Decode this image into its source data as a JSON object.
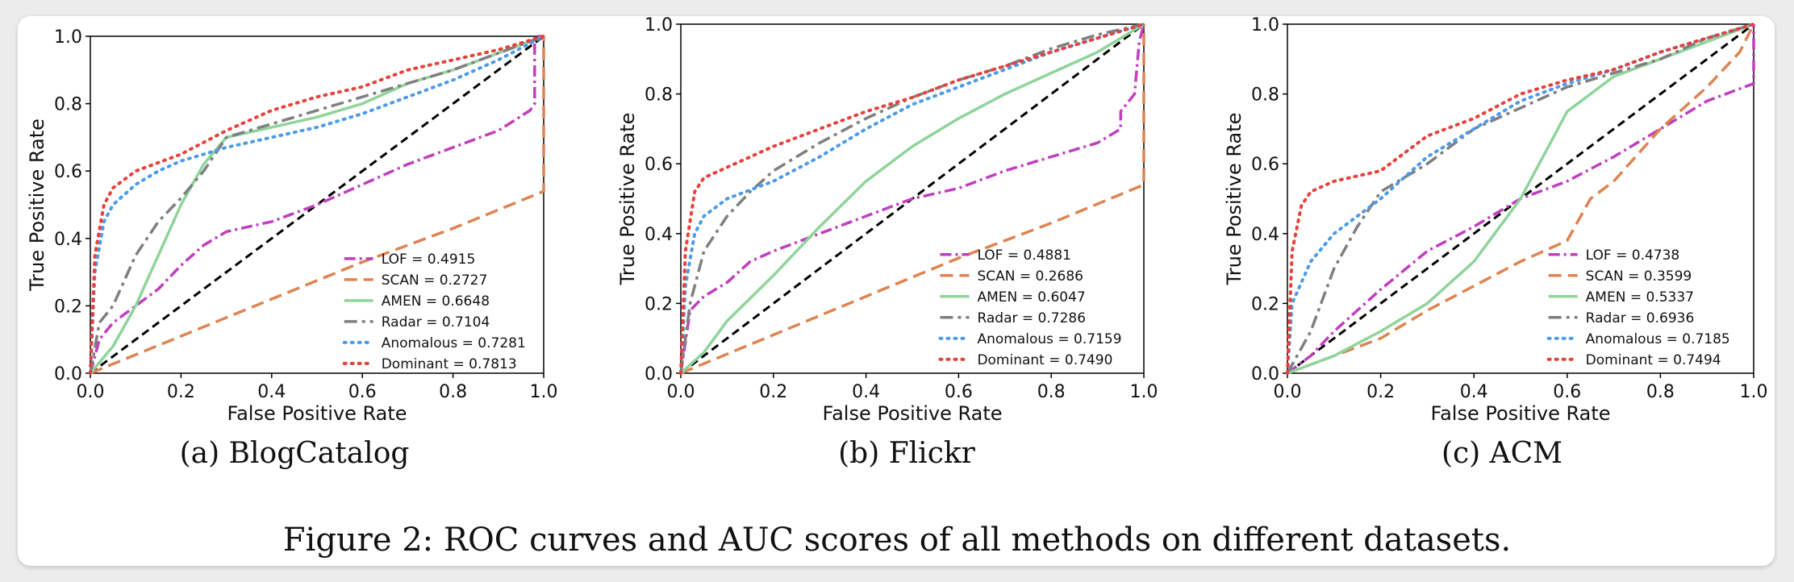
{
  "figure_caption": "Figure 2: ROC curves and AUC scores of all methods on different datasets.",
  "colors": {
    "LOF": "#bf3fbf",
    "SCAN": "#dd8452",
    "AMEN": "#8fd49a",
    "Radar": "#7f7f7f",
    "Anomalous": "#4c9be8",
    "Dominant": "#e8413c",
    "diagonal": "#000000"
  },
  "chart_data": [
    {
      "type": "line",
      "caption": "(a) BlogCatalog",
      "xlabel": "False Positive Rate",
      "ylabel": "True Positive Rate",
      "xlim": [
        0,
        1
      ],
      "ylim": [
        0,
        1
      ],
      "xticks": [
        "0.0",
        "0.2",
        "0.4",
        "0.6",
        "0.8",
        "1.0"
      ],
      "yticks": [
        "0.0",
        "0.2",
        "0.4",
        "0.6",
        "0.8",
        "1.0"
      ],
      "legend": "lower-right",
      "series": [
        {
          "name": "LOF = 0.4915",
          "key": "LOF",
          "points": [
            [
              0,
              0
            ],
            [
              0.02,
              0.1
            ],
            [
              0.05,
              0.15
            ],
            [
              0.1,
              0.2
            ],
            [
              0.15,
              0.25
            ],
            [
              0.2,
              0.32
            ],
            [
              0.25,
              0.38
            ],
            [
              0.3,
              0.42
            ],
            [
              0.4,
              0.45
            ],
            [
              0.5,
              0.5
            ],
            [
              0.6,
              0.56
            ],
            [
              0.7,
              0.62
            ],
            [
              0.8,
              0.67
            ],
            [
              0.9,
              0.72
            ],
            [
              0.97,
              0.78
            ],
            [
              0.98,
              0.8
            ],
            [
              0.98,
              1.0
            ],
            [
              1,
              1
            ]
          ]
        },
        {
          "name": "SCAN = 0.2727",
          "key": "SCAN",
          "points": [
            [
              0,
              0
            ],
            [
              0.2,
              0.11
            ],
            [
              0.4,
              0.22
            ],
            [
              0.6,
              0.33
            ],
            [
              0.8,
              0.43
            ],
            [
              1.0,
              0.54
            ],
            [
              1.0,
              1.0
            ]
          ]
        },
        {
          "name": "AMEN = 0.6648",
          "key": "AMEN",
          "points": [
            [
              0,
              0
            ],
            [
              0.05,
              0.08
            ],
            [
              0.1,
              0.2
            ],
            [
              0.15,
              0.35
            ],
            [
              0.2,
              0.5
            ],
            [
              0.25,
              0.62
            ],
            [
              0.3,
              0.7
            ],
            [
              0.4,
              0.73
            ],
            [
              0.5,
              0.76
            ],
            [
              0.6,
              0.8
            ],
            [
              0.7,
              0.86
            ],
            [
              0.8,
              0.9
            ],
            [
              0.9,
              0.95
            ],
            [
              1,
              1
            ]
          ]
        },
        {
          "name": "Radar = 0.7104",
          "key": "Radar",
          "points": [
            [
              0,
              0
            ],
            [
              0.02,
              0.15
            ],
            [
              0.05,
              0.2
            ],
            [
              0.1,
              0.35
            ],
            [
              0.15,
              0.45
            ],
            [
              0.2,
              0.52
            ],
            [
              0.25,
              0.6
            ],
            [
              0.3,
              0.7
            ],
            [
              0.4,
              0.74
            ],
            [
              0.5,
              0.78
            ],
            [
              0.6,
              0.82
            ],
            [
              0.7,
              0.86
            ],
            [
              0.8,
              0.9
            ],
            [
              0.9,
              0.95
            ],
            [
              1,
              1
            ]
          ]
        },
        {
          "name": "Anomalous = 0.7281",
          "key": "Anomalous",
          "points": [
            [
              0,
              0
            ],
            [
              0.01,
              0.3
            ],
            [
              0.03,
              0.45
            ],
            [
              0.05,
              0.5
            ],
            [
              0.1,
              0.56
            ],
            [
              0.15,
              0.6
            ],
            [
              0.2,
              0.63
            ],
            [
              0.3,
              0.67
            ],
            [
              0.4,
              0.7
            ],
            [
              0.5,
              0.73
            ],
            [
              0.6,
              0.77
            ],
            [
              0.7,
              0.82
            ],
            [
              0.8,
              0.87
            ],
            [
              0.9,
              0.93
            ],
            [
              1,
              1
            ]
          ]
        },
        {
          "name": "Dominant = 0.7813",
          "key": "Dominant",
          "points": [
            [
              0,
              0
            ],
            [
              0.01,
              0.35
            ],
            [
              0.03,
              0.5
            ],
            [
              0.05,
              0.55
            ],
            [
              0.1,
              0.6
            ],
            [
              0.2,
              0.65
            ],
            [
              0.3,
              0.72
            ],
            [
              0.4,
              0.78
            ],
            [
              0.5,
              0.82
            ],
            [
              0.6,
              0.85
            ],
            [
              0.7,
              0.9
            ],
            [
              0.8,
              0.93
            ],
            [
              0.9,
              0.96
            ],
            [
              1,
              1
            ]
          ]
        }
      ]
    },
    {
      "type": "line",
      "caption": "(b) Flickr",
      "xlabel": "False Positive Rate",
      "ylabel": "True Positive Rate",
      "xlim": [
        0,
        1
      ],
      "ylim": [
        0,
        1
      ],
      "xticks": [
        "0.0",
        "0.2",
        "0.4",
        "0.6",
        "0.8",
        "1.0"
      ],
      "yticks": [
        "0.0",
        "0.2",
        "0.4",
        "0.6",
        "0.8",
        "1.0"
      ],
      "legend": "lower-right",
      "series": [
        {
          "name": "LOF = 0.4881",
          "key": "LOF",
          "points": [
            [
              0,
              0
            ],
            [
              0.02,
              0.18
            ],
            [
              0.05,
              0.22
            ],
            [
              0.1,
              0.26
            ],
            [
              0.15,
              0.32
            ],
            [
              0.2,
              0.35
            ],
            [
              0.3,
              0.4
            ],
            [
              0.4,
              0.45
            ],
            [
              0.5,
              0.5
            ],
            [
              0.6,
              0.53
            ],
            [
              0.7,
              0.58
            ],
            [
              0.8,
              0.62
            ],
            [
              0.9,
              0.66
            ],
            [
              0.95,
              0.7
            ],
            [
              0.95,
              0.75
            ],
            [
              0.98,
              0.8
            ],
            [
              0.99,
              0.95
            ],
            [
              1,
              1
            ]
          ]
        },
        {
          "name": "SCAN = 0.2686",
          "key": "SCAN",
          "points": [
            [
              0,
              0
            ],
            [
              0.2,
              0.11
            ],
            [
              0.4,
              0.22
            ],
            [
              0.6,
              0.33
            ],
            [
              0.8,
              0.43
            ],
            [
              1.0,
              0.54
            ],
            [
              1.0,
              1.0
            ]
          ]
        },
        {
          "name": "AMEN = 0.6047",
          "key": "AMEN",
          "points": [
            [
              0,
              0
            ],
            [
              0.05,
              0.06
            ],
            [
              0.1,
              0.15
            ],
            [
              0.2,
              0.28
            ],
            [
              0.3,
              0.42
            ],
            [
              0.4,
              0.55
            ],
            [
              0.5,
              0.65
            ],
            [
              0.6,
              0.73
            ],
            [
              0.7,
              0.8
            ],
            [
              0.8,
              0.86
            ],
            [
              0.9,
              0.92
            ],
            [
              1,
              1
            ]
          ]
        },
        {
          "name": "Radar = 0.7286",
          "key": "Radar",
          "points": [
            [
              0,
              0
            ],
            [
              0.02,
              0.2
            ],
            [
              0.05,
              0.35
            ],
            [
              0.1,
              0.45
            ],
            [
              0.15,
              0.52
            ],
            [
              0.2,
              0.58
            ],
            [
              0.3,
              0.66
            ],
            [
              0.4,
              0.73
            ],
            [
              0.5,
              0.79
            ],
            [
              0.6,
              0.84
            ],
            [
              0.7,
              0.88
            ],
            [
              0.8,
              0.93
            ],
            [
              0.9,
              0.97
            ],
            [
              1,
              1
            ]
          ]
        },
        {
          "name": "Anomalous = 0.7159",
          "key": "Anomalous",
          "points": [
            [
              0,
              0
            ],
            [
              0.01,
              0.25
            ],
            [
              0.03,
              0.4
            ],
            [
              0.05,
              0.45
            ],
            [
              0.1,
              0.5
            ],
            [
              0.2,
              0.55
            ],
            [
              0.3,
              0.62
            ],
            [
              0.4,
              0.7
            ],
            [
              0.5,
              0.77
            ],
            [
              0.6,
              0.82
            ],
            [
              0.7,
              0.87
            ],
            [
              0.8,
              0.92
            ],
            [
              0.9,
              0.96
            ],
            [
              1,
              1
            ]
          ]
        },
        {
          "name": "Dominant = 0.7490",
          "key": "Dominant",
          "points": [
            [
              0,
              0
            ],
            [
              0.01,
              0.35
            ],
            [
              0.03,
              0.52
            ],
            [
              0.05,
              0.56
            ],
            [
              0.1,
              0.59
            ],
            [
              0.2,
              0.65
            ],
            [
              0.3,
              0.7
            ],
            [
              0.4,
              0.75
            ],
            [
              0.5,
              0.79
            ],
            [
              0.6,
              0.84
            ],
            [
              0.7,
              0.88
            ],
            [
              0.8,
              0.92
            ],
            [
              0.9,
              0.96
            ],
            [
              1,
              1
            ]
          ]
        }
      ]
    },
    {
      "type": "line",
      "caption": "(c) ACM",
      "xlabel": "False Positive Rate",
      "ylabel": "True Positive Rate",
      "xlim": [
        0,
        1
      ],
      "ylim": [
        0,
        1
      ],
      "xticks": [
        "0.0",
        "0.2",
        "0.4",
        "0.6",
        "0.8",
        "1.0"
      ],
      "yticks": [
        "0.0",
        "0.2",
        "0.4",
        "0.6",
        "0.8",
        "1.0"
      ],
      "legend": "lower-right",
      "series": [
        {
          "name": "LOF = 0.4738",
          "key": "LOF",
          "points": [
            [
              0,
              0
            ],
            [
              0.05,
              0.05
            ],
            [
              0.1,
              0.12
            ],
            [
              0.2,
              0.24
            ],
            [
              0.3,
              0.35
            ],
            [
              0.4,
              0.42
            ],
            [
              0.5,
              0.5
            ],
            [
              0.6,
              0.55
            ],
            [
              0.7,
              0.62
            ],
            [
              0.8,
              0.7
            ],
            [
              0.9,
              0.78
            ],
            [
              1,
              0.83
            ],
            [
              1,
              1
            ]
          ]
        },
        {
          "name": "SCAN = 0.3599",
          "key": "SCAN",
          "points": [
            [
              0,
              0
            ],
            [
              0.1,
              0.05
            ],
            [
              0.2,
              0.1
            ],
            [
              0.3,
              0.18
            ],
            [
              0.4,
              0.25
            ],
            [
              0.5,
              0.32
            ],
            [
              0.6,
              0.38
            ],
            [
              0.65,
              0.5
            ],
            [
              0.7,
              0.55
            ],
            [
              0.8,
              0.7
            ],
            [
              0.9,
              0.82
            ],
            [
              0.97,
              0.92
            ],
            [
              1,
              1
            ]
          ]
        },
        {
          "name": "AMEN = 0.5337",
          "key": "AMEN",
          "points": [
            [
              0,
              0
            ],
            [
              0.1,
              0.05
            ],
            [
              0.2,
              0.12
            ],
            [
              0.3,
              0.2
            ],
            [
              0.4,
              0.32
            ],
            [
              0.5,
              0.5
            ],
            [
              0.6,
              0.75
            ],
            [
              0.7,
              0.85
            ],
            [
              0.8,
              0.9
            ],
            [
              0.9,
              0.95
            ],
            [
              1,
              1
            ]
          ]
        },
        {
          "name": "Radar = 0.6936",
          "key": "Radar",
          "points": [
            [
              0,
              0
            ],
            [
              0.05,
              0.12
            ],
            [
              0.1,
              0.3
            ],
            [
              0.15,
              0.42
            ],
            [
              0.2,
              0.52
            ],
            [
              0.3,
              0.6
            ],
            [
              0.4,
              0.7
            ],
            [
              0.5,
              0.76
            ],
            [
              0.6,
              0.82
            ],
            [
              0.7,
              0.86
            ],
            [
              0.8,
              0.9
            ],
            [
              0.9,
              0.96
            ],
            [
              1,
              1
            ]
          ]
        },
        {
          "name": "Anomalous = 0.7185",
          "key": "Anomalous",
          "points": [
            [
              0,
              0
            ],
            [
              0.01,
              0.2
            ],
            [
              0.05,
              0.32
            ],
            [
              0.1,
              0.4
            ],
            [
              0.2,
              0.5
            ],
            [
              0.3,
              0.62
            ],
            [
              0.4,
              0.7
            ],
            [
              0.5,
              0.78
            ],
            [
              0.6,
              0.83
            ],
            [
              0.7,
              0.87
            ],
            [
              0.8,
              0.92
            ],
            [
              0.9,
              0.96
            ],
            [
              1,
              1
            ]
          ]
        },
        {
          "name": "Dominant = 0.7494",
          "key": "Dominant",
          "points": [
            [
              0,
              0
            ],
            [
              0.01,
              0.35
            ],
            [
              0.03,
              0.48
            ],
            [
              0.05,
              0.52
            ],
            [
              0.1,
              0.55
            ],
            [
              0.2,
              0.58
            ],
            [
              0.3,
              0.68
            ],
            [
              0.4,
              0.73
            ],
            [
              0.5,
              0.8
            ],
            [
              0.6,
              0.84
            ],
            [
              0.7,
              0.87
            ],
            [
              0.8,
              0.92
            ],
            [
              0.9,
              0.96
            ],
            [
              1,
              1
            ]
          ]
        }
      ]
    }
  ]
}
